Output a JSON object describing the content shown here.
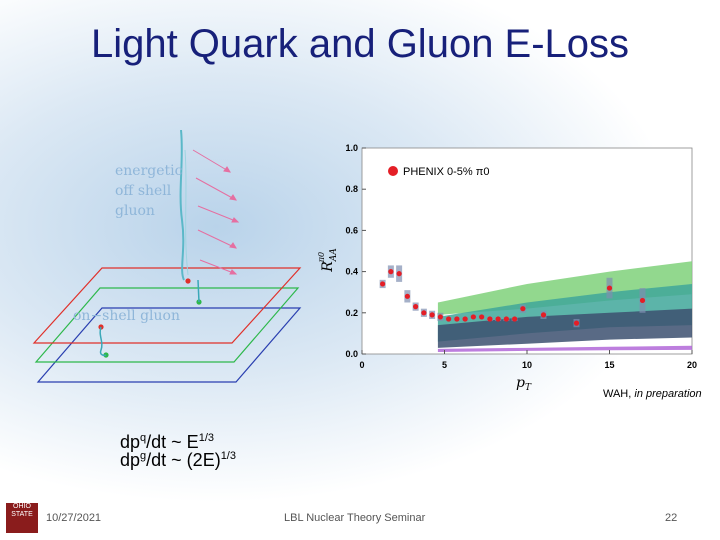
{
  "slide": {
    "title": "Light Quark and Gluon E-Loss",
    "date": "10/27/2021",
    "footer_center": "LBL Nuclear Theory Seminar",
    "page_number": "22",
    "logo_text": "OHIO STATE"
  },
  "diagram": {
    "label_offshell": [
      "energetic",
      "off shell",
      "gluon"
    ],
    "label_onshell": "on−shell gluon",
    "plane_colors": [
      "#e0302a",
      "#2db84b",
      "#2a3fb0"
    ]
  },
  "formulas": {
    "quark": {
      "base": "dp",
      "sup1": "q",
      "mid": "/dt ~ E",
      "sup2": "1/3"
    },
    "gluon": {
      "base": "dp",
      "sup1": "g",
      "mid": "/dt ~ (2E)",
      "sup2": "1/3"
    }
  },
  "credit": {
    "author": "WAH,",
    "note": "in preparation"
  },
  "chart_data": {
    "type": "scatter",
    "title": "",
    "xlabel": "pT",
    "ylabel": "R^{π0}_{AA}",
    "xlim": [
      0,
      20
    ],
    "ylim": [
      0,
      1.0
    ],
    "x_ticks": [
      "0",
      "5",
      "10",
      "15",
      "20"
    ],
    "y_ticks": [
      "0.0",
      "0.2",
      "0.4",
      "0.6",
      "0.8",
      "1.0"
    ],
    "legend": {
      "label": "PHENIX 0-5% π0",
      "position": "top-right"
    },
    "series": [
      {
        "name": "PHENIX 0-5% π0",
        "color": "#e41e26",
        "x": [
          1.25,
          1.75,
          2.25,
          2.75,
          3.25,
          3.75,
          4.25,
          4.75,
          5.25,
          5.75,
          6.25,
          6.75,
          7.25,
          7.75,
          8.25,
          8.75,
          9.25,
          9.75,
          11.0,
          13.0,
          15.0,
          17.0
        ],
        "y": [
          0.34,
          0.4,
          0.39,
          0.28,
          0.23,
          0.2,
          0.19,
          0.18,
          0.17,
          0.17,
          0.17,
          0.18,
          0.18,
          0.17,
          0.17,
          0.17,
          0.17,
          0.22,
          0.19,
          0.15,
          0.32,
          0.26
        ],
        "err": [
          0.02,
          0.03,
          0.04,
          0.03,
          0.02,
          0.02,
          0.02,
          0.02,
          0.01,
          0.01,
          0.01,
          0.01,
          0.01,
          0.01,
          0.01,
          0.01,
          0.01,
          0.02,
          0.02,
          0.02,
          0.05,
          0.06
        ]
      }
    ],
    "bands": [
      {
        "color": "#7fd17a",
        "x": [
          4.6,
          10,
          15,
          20
        ],
        "lower": [
          0.19,
          0.22,
          0.26,
          0.29
        ],
        "upper": [
          0.25,
          0.34,
          0.4,
          0.45
        ]
      },
      {
        "color": "#3fa79a",
        "x": [
          4.6,
          10,
          15,
          20
        ],
        "lower": [
          0.06,
          0.1,
          0.13,
          0.14
        ],
        "upper": [
          0.18,
          0.25,
          0.3,
          0.34
        ]
      },
      {
        "color": "#3c5070",
        "x": [
          4.6,
          10,
          15,
          20
        ],
        "lower": [
          0.03,
          0.05,
          0.07,
          0.08
        ],
        "upper": [
          0.14,
          0.18,
          0.2,
          0.22
        ]
      },
      {
        "color": "#b267d8",
        "x": [
          4.6,
          10,
          15,
          20
        ],
        "lower": [
          0.01,
          0.015,
          0.018,
          0.02
        ],
        "upper": [
          0.025,
          0.03,
          0.035,
          0.04
        ]
      }
    ]
  }
}
